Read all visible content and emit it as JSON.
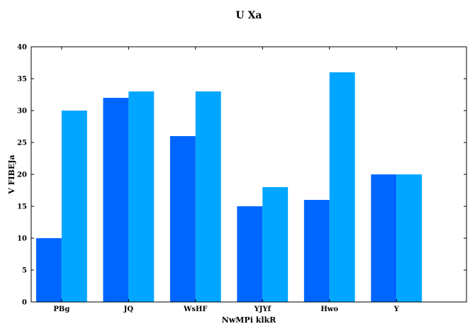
{
  "chart_data": {
    "type": "bar",
    "title": "U  Xa",
    "xlabel": "NwMPi klkR",
    "ylabel": "V FIBEJa",
    "categories": [
      "PBg",
      "JQ",
      "WsHF",
      "YJYf",
      "Hwo",
      "Y"
    ],
    "series": [
      {
        "values": [
          10,
          32,
          26,
          15,
          16,
          20
        ],
        "color": "#0066ff"
      },
      {
        "values": [
          30,
          33,
          33,
          18,
          36,
          20
        ],
        "color": "#00a6ff"
      }
    ],
    "ylim": [
      0,
      40
    ],
    "yticks": [
      0,
      5,
      10,
      15,
      20,
      25,
      30,
      35,
      40
    ],
    "grid": false,
    "legend": "none"
  }
}
